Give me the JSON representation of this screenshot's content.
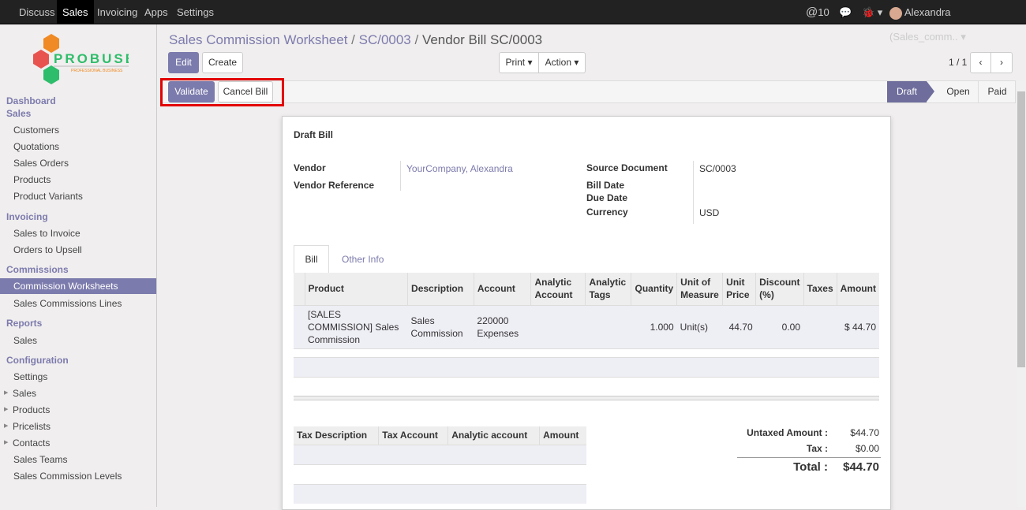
{
  "topbar": {
    "menus": [
      "Discuss",
      "Sales",
      "Invoicing",
      "Apps",
      "Settings"
    ],
    "active": "Sales",
    "mentions": "10",
    "user": "Alexandra (Sales_comm.."
  },
  "logo": {
    "name": "PROBUSE",
    "tagline": "PROFESSIONAL BUSINESS"
  },
  "sidebar": {
    "dashboard": "Dashboard",
    "sales": "Sales",
    "sales_items": [
      "Customers",
      "Quotations",
      "Sales Orders",
      "Products",
      "Product Variants"
    ],
    "invoicing": "Invoicing",
    "invoicing_items": [
      "Sales to Invoice",
      "Orders to Upsell"
    ],
    "commissions": "Commissions",
    "commissions_items": [
      "Commission Worksheets",
      "Sales Commissions Lines"
    ],
    "reports": "Reports",
    "reports_items": [
      "Sales"
    ],
    "configuration": "Configuration",
    "config_items": [
      "Settings",
      "Sales",
      "Products",
      "Pricelists",
      "Contacts",
      "Sales Teams",
      "Sales Commission Levels"
    ]
  },
  "breadcrumb": [
    "Sales Commission Worksheet",
    "SC/0003",
    "Vendor Bill SC/0003"
  ],
  "toolbar": {
    "edit": "Edit",
    "create": "Create",
    "print": "Print",
    "action": "Action",
    "pager": "1 / 1"
  },
  "header_buttons": {
    "validate": "Validate",
    "cancel_bill": "Cancel Bill"
  },
  "status": {
    "stages": [
      "Draft",
      "Open",
      "Paid"
    ],
    "current": "Draft"
  },
  "form": {
    "title": "Draft Bill",
    "vendor_label": "Vendor",
    "vendor": "YourCompany, Alexandra",
    "vendor_ref_label": "Vendor Reference",
    "source_label": "Source Document",
    "source": "SC/0003",
    "bill_date_label": "Bill Date",
    "due_date_label": "Due Date",
    "currency_label": "Currency",
    "currency": "USD",
    "tabs": [
      "Bill",
      "Other Info"
    ],
    "lines_headers": [
      "Product",
      "Description",
      "Account",
      "Analytic Account",
      "Analytic Tags",
      "Quantity",
      "Unit of Measure",
      "Unit Price",
      "Discount (%)",
      "Taxes",
      "Amount"
    ],
    "lines": [
      {
        "product": "[SALES COMMISSION] Sales Commission",
        "description": "Sales Commission",
        "account": "220000 Expenses",
        "analytic_account": "",
        "analytic_tags": "",
        "quantity": "1.000",
        "uom": "Unit(s)",
        "price": "44.70",
        "discount": "0.00",
        "taxes": "",
        "amount": "$ 44.70"
      }
    ],
    "tax_headers": [
      "Tax Description",
      "Tax Account",
      "Analytic account",
      "Amount"
    ],
    "untaxed_label": "Untaxed Amount :",
    "untaxed": "$44.70",
    "tax_label": "Tax :",
    "tax": "$0.00",
    "total_label": "Total :",
    "total": "$44.70"
  }
}
